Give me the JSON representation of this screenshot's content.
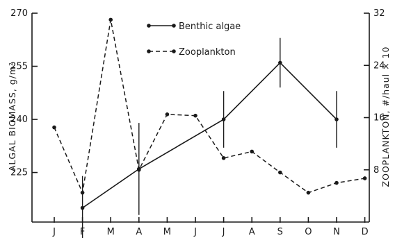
{
  "chart_data": {
    "type": "line",
    "categories": [
      "J",
      "F",
      "M",
      "A",
      "M",
      "J",
      "J",
      "A",
      "S",
      "O",
      "N",
      "D"
    ],
    "ylabel": "ALGAL BIOMASS, g/m²",
    "y2label": "ZOOPLANKTON, #/haul × 10",
    "ylim": [
      211,
      270
    ],
    "yticks": [
      225,
      240,
      255,
      270
    ],
    "ytick_labels": [
      "225",
      "240",
      "255",
      "270"
    ],
    "y2lim": [
      0,
      32
    ],
    "y2ticks": [
      8,
      16,
      24,
      32
    ],
    "y2tick_labels": [
      "8",
      "16",
      "24",
      "32"
    ],
    "grid": false,
    "legend": "top-center",
    "series": [
      {
        "name": "Benthic algae",
        "axis": "left",
        "style": "solid",
        "values": [
          null,
          215,
          null,
          226,
          null,
          null,
          240,
          null,
          256,
          null,
          240,
          null
        ],
        "errors": [
          null,
          9,
          null,
          13,
          null,
          null,
          8,
          null,
          7,
          null,
          8,
          null
        ]
      },
      {
        "name": "Zooplankton",
        "axis": "right",
        "style": "dashed",
        "values": [
          14.5,
          4.5,
          31,
          8,
          16.5,
          16.3,
          9.8,
          10.8,
          7.6,
          4.5,
          6,
          6.7
        ]
      }
    ]
  }
}
